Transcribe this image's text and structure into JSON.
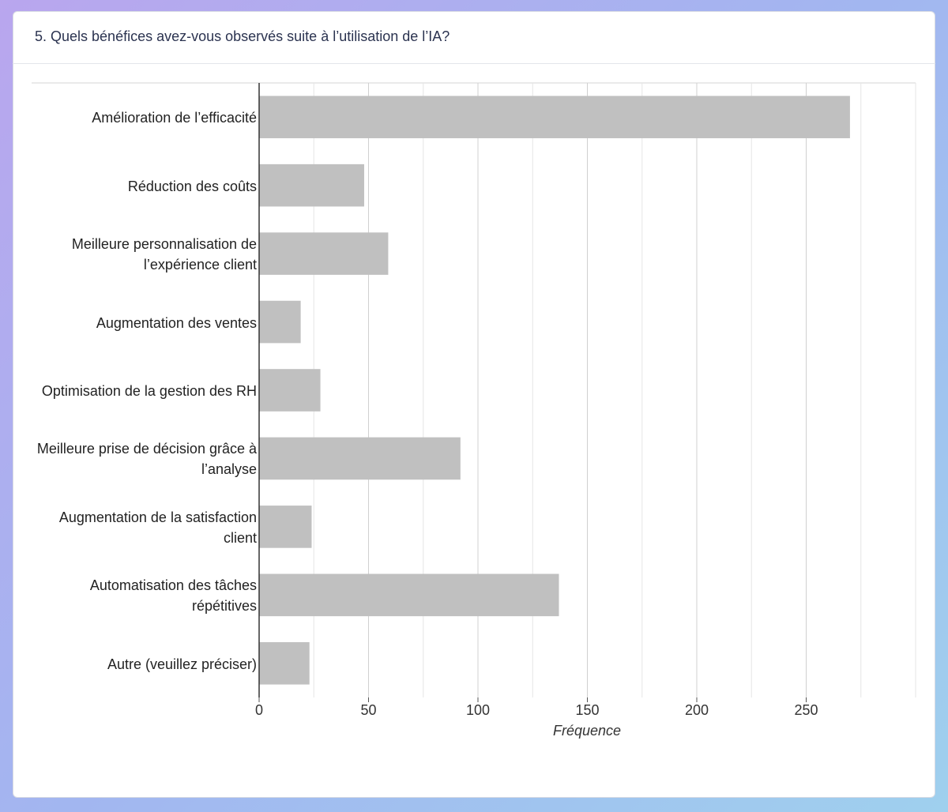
{
  "chart_data": {
    "type": "barh",
    "title": "5. Quels bénéfices avez-vous observés suite à l’utilisation de l’IA?",
    "x_label": "Fréquence",
    "categories": [
      "Amélioration de l’efficacité",
      "Réduction des coûts",
      "Meilleure personnalisation de l’expérience client",
      "Augmentation des ventes",
      "Optimisation de la gestion des RH",
      "Meilleure prise de décision grâce à l’analyse",
      "Augmentation de la satisfaction client",
      "Automatisation des tâches répétitives",
      "Autre (veuillez préciser)"
    ],
    "values": [
      270,
      48,
      59,
      19,
      28,
      92,
      24,
      137,
      23
    ],
    "color": "#c0c0c0",
    "xlim": [
      0,
      300
    ],
    "xticks": [
      0,
      50,
      100,
      150,
      200,
      250
    ],
    "minor_xgrid": [
      25,
      75,
      125,
      175,
      225,
      275,
      300
    ],
    "grid": true
  }
}
